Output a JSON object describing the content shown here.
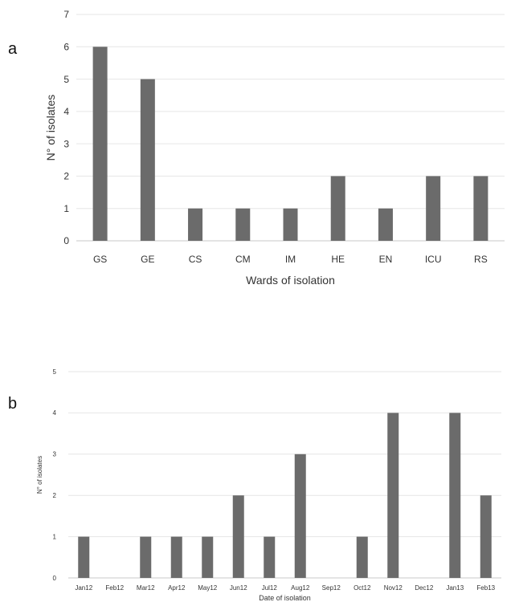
{
  "panels": {
    "a": "a",
    "b": "b"
  },
  "chart_data": [
    {
      "type": "bar",
      "panel": "a",
      "categories": [
        "GS",
        "GE",
        "CS",
        "CM",
        "IM",
        "HE",
        "EN",
        "ICU",
        "RS"
      ],
      "values": [
        6,
        5,
        1,
        1,
        1,
        2,
        1,
        2,
        2
      ],
      "xlabel": "Wards of isolation",
      "ylabel": "N° of isolates",
      "ylim": [
        0,
        7
      ],
      "yticks": [
        0,
        1,
        2,
        3,
        4,
        5,
        6,
        7
      ],
      "grid": true,
      "bar_color": "#6b6b6b"
    },
    {
      "type": "bar",
      "panel": "b",
      "categories": [
        "Jan12",
        "Feb12",
        "Mar12",
        "Apr12",
        "May12",
        "Jun12",
        "Jul12",
        "Aug12",
        "Sep12",
        "Oct12",
        "Nov12",
        "Dec12",
        "Jan13",
        "Feb13"
      ],
      "values": [
        1,
        0,
        1,
        1,
        1,
        2,
        1,
        3,
        0,
        1,
        4,
        0,
        4,
        2
      ],
      "xlabel": "Date of isolation",
      "ylabel": "N° of isolates",
      "ylim": [
        0,
        5
      ],
      "yticks": [
        0,
        1,
        2,
        3,
        4,
        5
      ],
      "grid": true,
      "bar_color": "#6b6b6b"
    }
  ]
}
